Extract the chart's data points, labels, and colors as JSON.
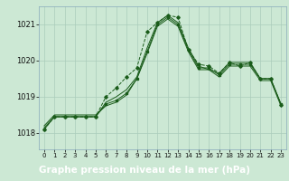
{
  "background_color": "#cce8d4",
  "plot_bg_color": "#cce8d4",
  "grid_color": "#aaccbb",
  "line_color": "#1a5c1a",
  "footer_bg": "#2d6e2d",
  "footer_text_color": "#ffffff",
  "xlabel": "Graphe pression niveau de la mer (hPa)",
  "xlabel_fontsize": 7.5,
  "ylabel_ticks": [
    1018,
    1019,
    1020,
    1021
  ],
  "ytick_fontsize": 6,
  "xtick_fontsize": 5,
  "xlim": [
    -0.5,
    23.5
  ],
  "ylim": [
    1017.55,
    1021.5
  ],
  "xticks": [
    0,
    1,
    2,
    3,
    4,
    5,
    6,
    7,
    8,
    9,
    10,
    11,
    12,
    13,
    14,
    15,
    16,
    17,
    18,
    19,
    20,
    21,
    22,
    23
  ],
  "line1_y": [
    1018.1,
    1018.45,
    1018.45,
    1018.45,
    1018.45,
    1018.45,
    1018.8,
    1018.9,
    1019.1,
    1019.5,
    1020.25,
    1021.0,
    1021.2,
    1021.0,
    1020.3,
    1019.8,
    1019.8,
    1019.6,
    1019.9,
    1019.9,
    1019.9,
    1019.5,
    1019.5,
    1018.8
  ],
  "line2_y": [
    1018.15,
    1018.45,
    1018.45,
    1018.45,
    1018.45,
    1018.45,
    1018.85,
    1019.0,
    1019.2,
    1019.55,
    1020.35,
    1021.05,
    1021.25,
    1021.05,
    1020.35,
    1019.85,
    1019.75,
    1019.65,
    1019.95,
    1019.95,
    1019.95,
    1019.5,
    1019.5,
    1018.8
  ],
  "line3_y": [
    1018.2,
    1018.5,
    1018.5,
    1018.5,
    1018.5,
    1018.5,
    1018.75,
    1018.85,
    1019.05,
    1019.5,
    1020.2,
    1020.95,
    1021.15,
    1020.95,
    1020.25,
    1019.75,
    1019.75,
    1019.55,
    1019.85,
    1019.85,
    1019.85,
    1019.45,
    1019.45,
    1018.75
  ],
  "line4_y": [
    1018.1,
    1018.45,
    1018.45,
    1018.45,
    1018.45,
    1018.45,
    1019.0,
    1019.25,
    1019.55,
    1019.8,
    1020.8,
    1021.05,
    1021.25,
    1021.2,
    1020.3,
    1019.9,
    1019.85,
    1019.65,
    1019.95,
    1019.85,
    1019.95,
    1019.5,
    1019.5,
    1018.78
  ]
}
